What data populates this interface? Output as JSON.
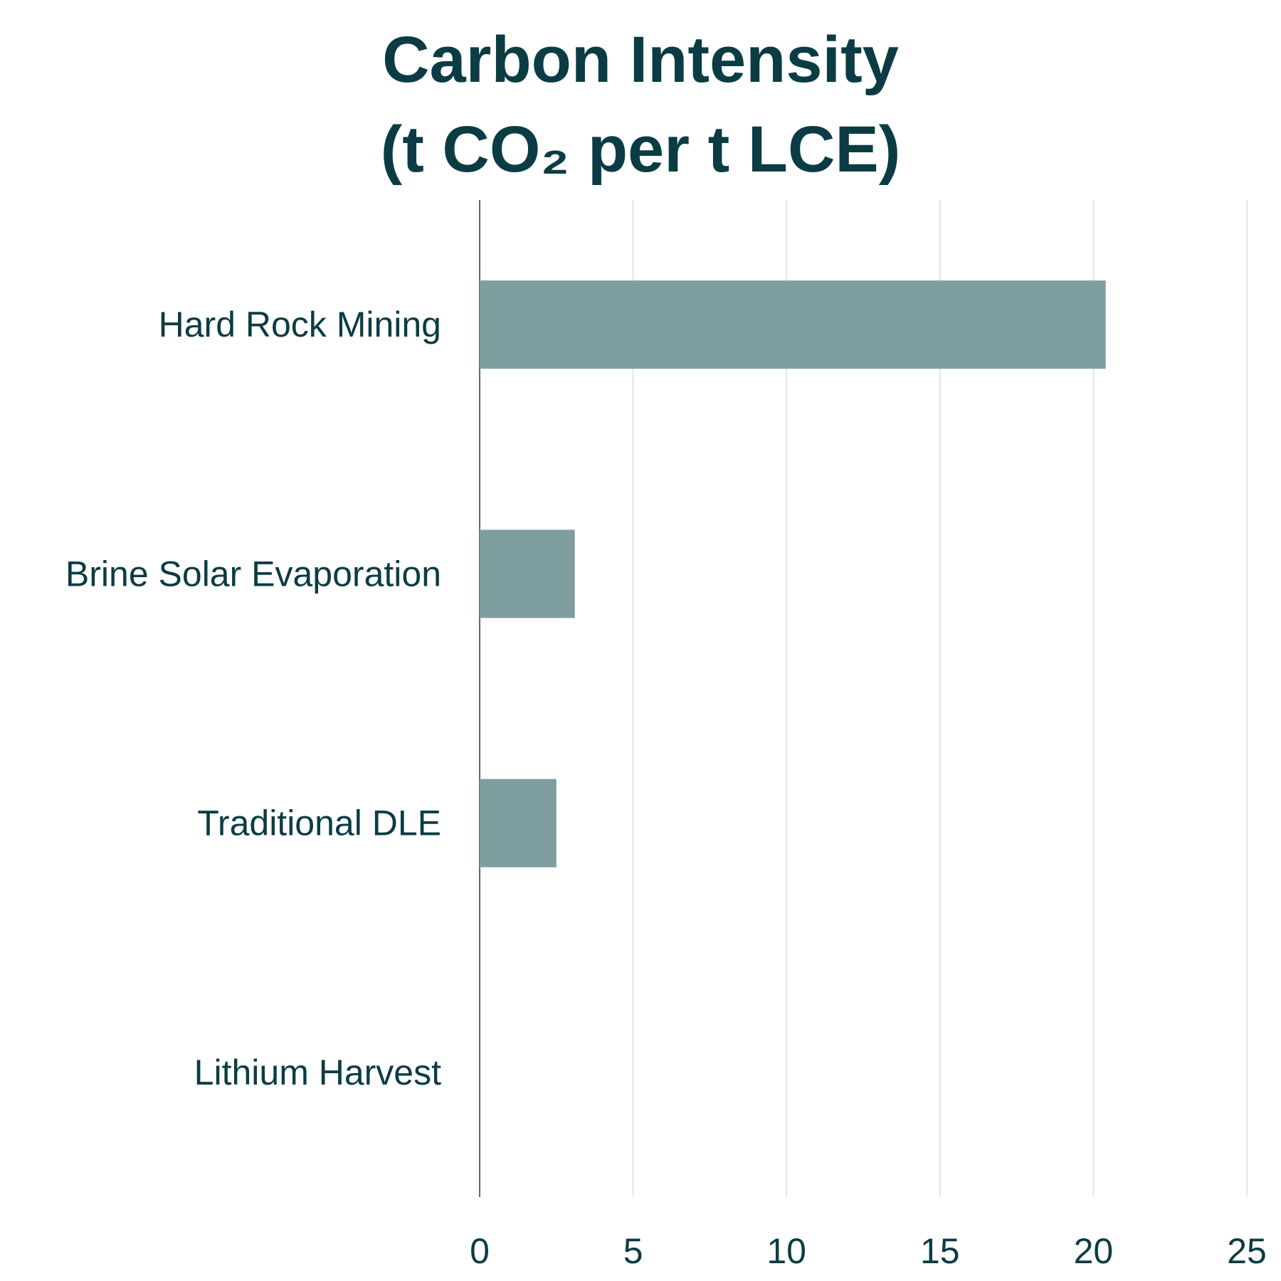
{
  "chart_data": {
    "type": "bar",
    "orientation": "horizontal",
    "title_lines": [
      "Carbon Intensity",
      "(t CO₂ per t LCE)"
    ],
    "categories": [
      "Hard Rock Mining",
      "Brine Solar Evaporation",
      "Traditional DLE",
      "Lithium Harvest"
    ],
    "values": [
      20.4,
      3.1,
      2.5,
      0
    ],
    "xlim": [
      0,
      25
    ],
    "xticks": [
      "0",
      "5",
      "10",
      "15",
      "20",
      "25"
    ],
    "xlabel": "",
    "ylabel": "",
    "grid": "vertical",
    "colors": {
      "bar": "#7f9ea0",
      "text": "#0b3c44",
      "grid": "#dddddd",
      "axis": "#333333"
    }
  }
}
